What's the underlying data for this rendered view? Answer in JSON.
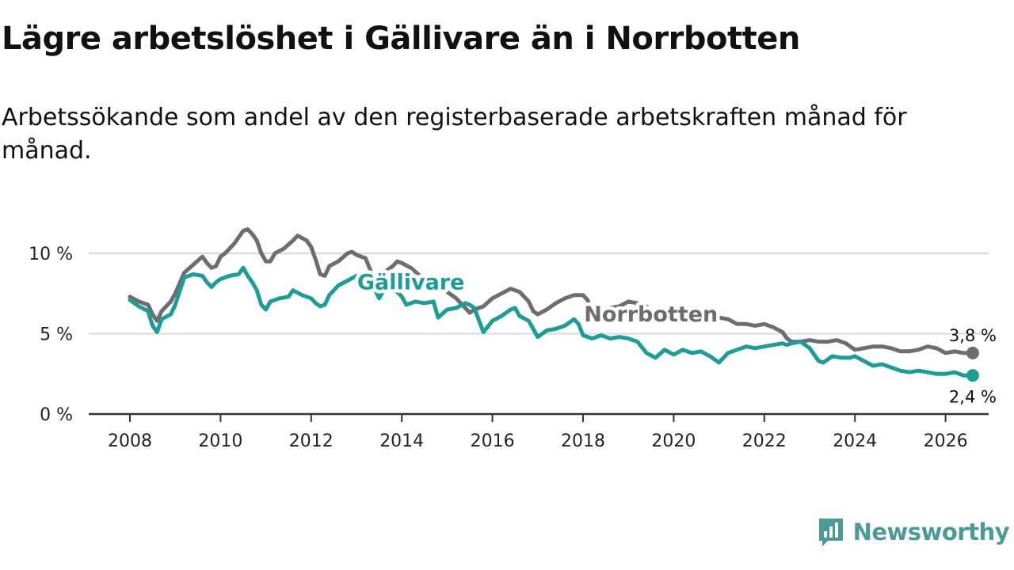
{
  "header": {
    "title": "Lägre arbetslöshet i Gällivare än i Norrbotten",
    "subtitle": "Arbetssökande som andel av den registerbaserade arbetskraften månad för månad."
  },
  "brand": {
    "name": "Newsworthy",
    "icon": "newsworthy-logo-icon",
    "color": "#4a9a98"
  },
  "colors": {
    "gallivare": "#1a9e95",
    "norrbotten": "#6d6c71",
    "grid": "#d9d9d9",
    "axis": "#333333"
  },
  "chart_data": {
    "type": "line",
    "title": "Lägre arbetslöshet i Gällivare än i Norrbotten",
    "xlabel": "",
    "ylabel": "",
    "xlim": [
      2007.4,
      2027.0
    ],
    "ylim": [
      0,
      10
    ],
    "y_ticks": [
      0,
      5,
      10
    ],
    "y_tick_labels": [
      "0 %",
      "5 %",
      "10 %"
    ],
    "x_ticks": [
      2008,
      2010,
      2012,
      2014,
      2016,
      2018,
      2020,
      2022,
      2024,
      2026
    ],
    "x_tick_labels": [
      "2008",
      "2010",
      "2012",
      "2014",
      "2016",
      "2018",
      "2020",
      "2022",
      "2024",
      "2026"
    ],
    "series": [
      {
        "name": "Norrbotten",
        "key": "norrbotten",
        "label_pos": [
          2019.5,
          6.2
        ],
        "end_label": "3,8 %",
        "points": [
          [
            2008.0,
            7.3
          ],
          [
            2008.2,
            7.0
          ],
          [
            2008.4,
            6.8
          ],
          [
            2008.5,
            6.2
          ],
          [
            2008.6,
            5.8
          ],
          [
            2008.7,
            6.4
          ],
          [
            2008.9,
            7.0
          ],
          [
            2009.0,
            7.5
          ],
          [
            2009.2,
            8.8
          ],
          [
            2009.4,
            9.3
          ],
          [
            2009.6,
            9.8
          ],
          [
            2009.7,
            9.4
          ],
          [
            2009.8,
            9.1
          ],
          [
            2009.9,
            9.2
          ],
          [
            2010.0,
            9.8
          ],
          [
            2010.1,
            10.0
          ],
          [
            2010.3,
            10.6
          ],
          [
            2010.5,
            11.4
          ],
          [
            2010.6,
            11.5
          ],
          [
            2010.7,
            11.2
          ],
          [
            2010.8,
            10.8
          ],
          [
            2010.9,
            10.0
          ],
          [
            2011.0,
            9.5
          ],
          [
            2011.1,
            9.5
          ],
          [
            2011.2,
            10.0
          ],
          [
            2011.4,
            10.3
          ],
          [
            2011.6,
            10.8
          ],
          [
            2011.7,
            11.1
          ],
          [
            2011.9,
            10.8
          ],
          [
            2012.0,
            10.4
          ],
          [
            2012.1,
            9.6
          ],
          [
            2012.2,
            8.7
          ],
          [
            2012.3,
            8.6
          ],
          [
            2012.4,
            9.2
          ],
          [
            2012.6,
            9.5
          ],
          [
            2012.8,
            10.0
          ],
          [
            2012.9,
            10.1
          ],
          [
            2013.0,
            9.9
          ],
          [
            2013.2,
            9.7
          ],
          [
            2013.3,
            9.0
          ],
          [
            2013.4,
            8.1
          ],
          [
            2013.5,
            8.5
          ],
          [
            2013.6,
            8.8
          ],
          [
            2013.8,
            9.2
          ],
          [
            2013.9,
            9.5
          ],
          [
            2014.0,
            9.4
          ],
          [
            2014.2,
            9.1
          ],
          [
            2014.4,
            8.6
          ],
          [
            2014.6,
            8.3
          ],
          [
            2014.8,
            8.0
          ],
          [
            2015.0,
            7.6
          ],
          [
            2015.2,
            7.2
          ],
          [
            2015.4,
            6.6
          ],
          [
            2015.5,
            6.3
          ],
          [
            2015.6,
            6.5
          ],
          [
            2015.8,
            6.7
          ],
          [
            2016.0,
            7.2
          ],
          [
            2016.2,
            7.5
          ],
          [
            2016.4,
            7.8
          ],
          [
            2016.6,
            7.6
          ],
          [
            2016.8,
            7.0
          ],
          [
            2016.9,
            6.4
          ],
          [
            2017.0,
            6.2
          ],
          [
            2017.2,
            6.5
          ],
          [
            2017.4,
            6.9
          ],
          [
            2017.6,
            7.2
          ],
          [
            2017.8,
            7.4
          ],
          [
            2018.0,
            7.4
          ],
          [
            2018.1,
            7.1
          ],
          [
            2018.2,
            6.2
          ],
          [
            2018.3,
            6.0
          ],
          [
            2018.5,
            6.3
          ],
          [
            2018.6,
            6.6
          ],
          [
            2018.8,
            6.7
          ],
          [
            2019.0,
            7.0
          ],
          [
            2019.2,
            6.9
          ],
          [
            2019.4,
            6.7
          ],
          [
            2019.5,
            6.2
          ],
          [
            2019.7,
            6.1
          ],
          [
            2019.9,
            6.2
          ],
          [
            2020.0,
            6.0
          ],
          [
            2020.2,
            5.9
          ],
          [
            2020.4,
            5.9
          ],
          [
            2020.5,
            6.0
          ],
          [
            2020.6,
            6.2
          ],
          [
            2020.8,
            6.1
          ],
          [
            2021.0,
            6.0
          ],
          [
            2021.2,
            5.9
          ],
          [
            2021.4,
            5.6
          ],
          [
            2021.6,
            5.6
          ],
          [
            2021.8,
            5.5
          ],
          [
            2022.0,
            5.6
          ],
          [
            2022.2,
            5.4
          ],
          [
            2022.4,
            5.1
          ],
          [
            2022.5,
            4.7
          ],
          [
            2022.6,
            4.5
          ],
          [
            2022.8,
            4.5
          ],
          [
            2023.0,
            4.6
          ],
          [
            2023.2,
            4.5
          ],
          [
            2023.4,
            4.5
          ],
          [
            2023.6,
            4.6
          ],
          [
            2023.8,
            4.4
          ],
          [
            2024.0,
            4.0
          ],
          [
            2024.2,
            4.1
          ],
          [
            2024.4,
            4.2
          ],
          [
            2024.6,
            4.2
          ],
          [
            2024.8,
            4.1
          ],
          [
            2025.0,
            3.9
          ],
          [
            2025.2,
            3.9
          ],
          [
            2025.4,
            4.0
          ],
          [
            2025.6,
            4.2
          ],
          [
            2025.8,
            4.1
          ],
          [
            2026.0,
            3.8
          ],
          [
            2026.2,
            3.9
          ],
          [
            2026.4,
            3.8
          ],
          [
            2026.6,
            3.8
          ]
        ]
      },
      {
        "name": "Gällivare",
        "key": "gallivare",
        "label_pos": [
          2014.2,
          8.2
        ],
        "end_label": "2,4 %",
        "points": [
          [
            2008.0,
            7.1
          ],
          [
            2008.2,
            6.7
          ],
          [
            2008.4,
            6.4
          ],
          [
            2008.5,
            5.5
          ],
          [
            2008.6,
            5.1
          ],
          [
            2008.7,
            5.9
          ],
          [
            2008.9,
            6.2
          ],
          [
            2009.0,
            6.8
          ],
          [
            2009.2,
            8.5
          ],
          [
            2009.4,
            8.7
          ],
          [
            2009.6,
            8.6
          ],
          [
            2009.7,
            8.2
          ],
          [
            2009.8,
            7.9
          ],
          [
            2009.9,
            8.2
          ],
          [
            2010.0,
            8.4
          ],
          [
            2010.2,
            8.6
          ],
          [
            2010.4,
            8.7
          ],
          [
            2010.5,
            9.1
          ],
          [
            2010.6,
            8.6
          ],
          [
            2010.7,
            8.2
          ],
          [
            2010.8,
            7.7
          ],
          [
            2010.9,
            6.8
          ],
          [
            2011.0,
            6.5
          ],
          [
            2011.1,
            7.0
          ],
          [
            2011.3,
            7.2
          ],
          [
            2011.5,
            7.3
          ],
          [
            2011.6,
            7.7
          ],
          [
            2011.8,
            7.4
          ],
          [
            2012.0,
            7.2
          ],
          [
            2012.1,
            6.9
          ],
          [
            2012.2,
            6.7
          ],
          [
            2012.3,
            6.8
          ],
          [
            2012.4,
            7.4
          ],
          [
            2012.6,
            8.0
          ],
          [
            2012.8,
            8.3
          ],
          [
            2013.0,
            8.6
          ],
          [
            2013.2,
            8.6
          ],
          [
            2013.4,
            7.8
          ],
          [
            2013.5,
            7.2
          ],
          [
            2013.6,
            7.7
          ],
          [
            2013.8,
            7.8
          ],
          [
            2013.9,
            7.6
          ],
          [
            2014.0,
            7.3
          ],
          [
            2014.1,
            6.8
          ],
          [
            2014.3,
            7.0
          ],
          [
            2014.5,
            6.9
          ],
          [
            2014.7,
            7.0
          ],
          [
            2014.8,
            6.0
          ],
          [
            2015.0,
            6.5
          ],
          [
            2015.2,
            6.6
          ],
          [
            2015.4,
            6.9
          ],
          [
            2015.5,
            6.8
          ],
          [
            2015.6,
            6.6
          ],
          [
            2015.8,
            5.1
          ],
          [
            2016.0,
            5.8
          ],
          [
            2016.2,
            6.1
          ],
          [
            2016.4,
            6.5
          ],
          [
            2016.5,
            6.6
          ],
          [
            2016.6,
            6.1
          ],
          [
            2016.8,
            5.8
          ],
          [
            2017.0,
            4.8
          ],
          [
            2017.2,
            5.2
          ],
          [
            2017.4,
            5.3
          ],
          [
            2017.6,
            5.5
          ],
          [
            2017.8,
            5.9
          ],
          [
            2017.9,
            5.6
          ],
          [
            2018.0,
            4.9
          ],
          [
            2018.2,
            4.7
          ],
          [
            2018.4,
            4.9
          ],
          [
            2018.6,
            4.7
          ],
          [
            2018.8,
            4.8
          ],
          [
            2019.0,
            4.7
          ],
          [
            2019.2,
            4.5
          ],
          [
            2019.4,
            3.8
          ],
          [
            2019.6,
            3.5
          ],
          [
            2019.8,
            4.0
          ],
          [
            2020.0,
            3.7
          ],
          [
            2020.2,
            4.0
          ],
          [
            2020.4,
            3.8
          ],
          [
            2020.6,
            3.9
          ],
          [
            2020.8,
            3.6
          ],
          [
            2021.0,
            3.2
          ],
          [
            2021.2,
            3.8
          ],
          [
            2021.4,
            4.0
          ],
          [
            2021.6,
            4.2
          ],
          [
            2021.8,
            4.1
          ],
          [
            2022.0,
            4.2
          ],
          [
            2022.2,
            4.3
          ],
          [
            2022.4,
            4.4
          ],
          [
            2022.5,
            4.3
          ],
          [
            2022.6,
            4.4
          ],
          [
            2022.8,
            4.5
          ],
          [
            2023.0,
            4.1
          ],
          [
            2023.2,
            3.3
          ],
          [
            2023.3,
            3.2
          ],
          [
            2023.5,
            3.6
          ],
          [
            2023.7,
            3.5
          ],
          [
            2023.9,
            3.5
          ],
          [
            2024.0,
            3.6
          ],
          [
            2024.2,
            3.3
          ],
          [
            2024.4,
            3.0
          ],
          [
            2024.6,
            3.1
          ],
          [
            2024.8,
            2.9
          ],
          [
            2025.0,
            2.7
          ],
          [
            2025.2,
            2.6
          ],
          [
            2025.4,
            2.7
          ],
          [
            2025.6,
            2.6
          ],
          [
            2025.8,
            2.5
          ],
          [
            2026.0,
            2.5
          ],
          [
            2026.2,
            2.6
          ],
          [
            2026.4,
            2.4
          ],
          [
            2026.6,
            2.4
          ]
        ]
      }
    ]
  }
}
